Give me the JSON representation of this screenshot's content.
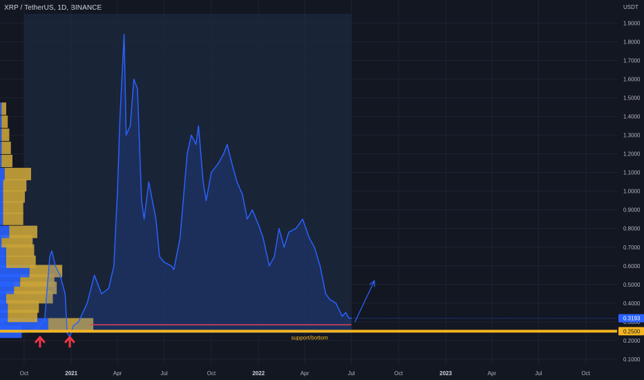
{
  "header": {
    "symbol_title": "XRP / TetherUS, 1D, BINANCE",
    "price_unit": "USDT"
  },
  "colors": {
    "background": "#131722",
    "line": "#2962ff",
    "support_line": "#f5b521",
    "red_line": "#e0435a",
    "arrow_red": "#f23645",
    "vp_up": "#2962ff",
    "vp_down": "#c9a33a",
    "grid": "#1f2331"
  },
  "chart_data": {
    "type": "line",
    "title": "XRP / TetherUS, 1D, BINANCE",
    "ylabel": "USDT",
    "ylim": [
      0.07,
      1.95
    ],
    "y_ticks": [
      "0.1000",
      "0.2000",
      "0.3000",
      "0.4000",
      "0.5000",
      "0.6000",
      "0.7000",
      "0.8000",
      "0.9000",
      "1.0000",
      "1.1000",
      "1.2000",
      "1.3000",
      "1.4000",
      "1.5000",
      "1.6000",
      "1.7000",
      "1.8000",
      "1.9000"
    ],
    "x_ticks": [
      {
        "label": "Oct",
        "bold": false
      },
      {
        "label": "2021",
        "bold": true
      },
      {
        "label": "Apr",
        "bold": false
      },
      {
        "label": "Jul",
        "bold": false
      },
      {
        "label": "Oct",
        "bold": false
      },
      {
        "label": "2022",
        "bold": true
      },
      {
        "label": "Apr",
        "bold": false
      },
      {
        "label": "Jul",
        "bold": false
      },
      {
        "label": "Oct",
        "bold": false
      },
      {
        "label": "2023",
        "bold": true
      },
      {
        "label": "Apr",
        "bold": false
      },
      {
        "label": "Jul",
        "bold": false
      },
      {
        "label": "Oct",
        "bold": false
      }
    ],
    "series": [
      {
        "x": [
          "2020-08-15",
          "2020-09-01",
          "2020-09-15",
          "2020-10-01",
          "2020-10-15",
          "2020-11-01",
          "2020-11-10",
          "2020-11-20",
          "2020-11-24",
          "2020-12-01",
          "2020-12-10",
          "2020-12-20",
          "2020-12-24",
          "2020-12-29",
          "2021-01-05",
          "2021-01-15",
          "2021-02-01",
          "2021-02-15",
          "2021-03-01",
          "2021-03-15",
          "2021-03-25",
          "2021-04-01",
          "2021-04-06",
          "2021-04-14",
          "2021-04-18",
          "2021-04-26",
          "2021-05-03",
          "2021-05-10",
          "2021-05-18",
          "2021-05-23",
          "2021-06-01",
          "2021-06-15",
          "2021-06-22",
          "2021-07-01",
          "2021-07-15",
          "2021-07-20",
          "2021-08-01",
          "2021-08-15",
          "2021-08-23",
          "2021-09-01",
          "2021-09-06",
          "2021-09-15",
          "2021-09-21",
          "2021-10-01",
          "2021-10-15",
          "2021-10-25",
          "2021-11-01",
          "2021-11-10",
          "2021-11-20",
          "2021-12-01",
          "2021-12-10",
          "2021-12-20",
          "2022-01-01",
          "2022-01-10",
          "2022-01-22",
          "2022-02-01",
          "2022-02-10",
          "2022-02-20",
          "2022-03-01",
          "2022-03-15",
          "2022-03-28",
          "2022-04-10",
          "2022-04-20",
          "2022-05-01",
          "2022-05-12",
          "2022-05-20",
          "2022-06-01",
          "2022-06-13",
          "2022-06-20",
          "2022-06-26",
          "2022-07-01"
        ],
        "values": [
          0.3,
          0.27,
          0.24,
          0.245,
          0.25,
          0.28,
          0.31,
          0.65,
          0.68,
          0.6,
          0.55,
          0.45,
          0.24,
          0.22,
          0.28,
          0.3,
          0.4,
          0.55,
          0.45,
          0.48,
          0.6,
          1.0,
          1.4,
          1.84,
          1.3,
          1.35,
          1.6,
          1.55,
          0.95,
          0.85,
          1.05,
          0.85,
          0.65,
          0.62,
          0.6,
          0.58,
          0.75,
          1.2,
          1.3,
          1.25,
          1.35,
          1.05,
          0.95,
          1.1,
          1.15,
          1.2,
          1.25,
          1.15,
          1.05,
          0.98,
          0.85,
          0.9,
          0.82,
          0.75,
          0.6,
          0.65,
          0.8,
          0.7,
          0.78,
          0.8,
          0.85,
          0.75,
          0.7,
          0.6,
          0.45,
          0.42,
          0.4,
          0.33,
          0.35,
          0.32,
          0.3193
        ]
      }
    ],
    "x_range": [
      "2020-08-15",
      "2023-12-01"
    ],
    "highlight_range": [
      "2020-10-01",
      "2022-07-01"
    ],
    "support_level": 0.25,
    "red_level": 0.2848,
    "current_price": 0.3193,
    "price_tags": [
      {
        "label": "0.3193",
        "value": 0.3193,
        "bg": "#2962ff",
        "fg": "#ffffff"
      },
      {
        "label": "0.2500",
        "value": 0.25,
        "bg": "#f5b521",
        "fg": "#131722"
      }
    ],
    "annotation_label": "support/bottom",
    "projection": {
      "from": [
        "2022-07-08",
        0.3
      ],
      "to": [
        "2022-08-15",
        0.52
      ]
    },
    "volume_profile": [
      {
        "price": 0.245,
        "up": 28,
        "down": 0
      },
      {
        "price": 0.285,
        "up": 62,
        "down": 58
      },
      {
        "price": 0.33,
        "up": 10,
        "down": 38
      },
      {
        "price": 0.38,
        "up": 10,
        "down": 40
      },
      {
        "price": 0.43,
        "up": 8,
        "down": 60
      },
      {
        "price": 0.48,
        "up": 18,
        "down": 55
      },
      {
        "price": 0.52,
        "up": 26,
        "down": 44
      },
      {
        "price": 0.57,
        "up": 38,
        "down": 42
      },
      {
        "price": 0.62,
        "up": 8,
        "down": 38
      },
      {
        "price": 0.68,
        "up": 8,
        "down": 36
      },
      {
        "price": 0.73,
        "up": 2,
        "down": 40
      },
      {
        "price": 0.78,
        "up": 12,
        "down": 36
      },
      {
        "price": 0.85,
        "up": 4,
        "down": 26
      },
      {
        "price": 0.91,
        "up": 4,
        "down": 26
      },
      {
        "price": 0.97,
        "up": 4,
        "down": 28
      },
      {
        "price": 1.03,
        "up": 4,
        "down": 30
      },
      {
        "price": 1.09,
        "up": 6,
        "down": 34
      },
      {
        "price": 1.16,
        "up": 2,
        "down": 14
      },
      {
        "price": 1.23,
        "up": 2,
        "down": 12
      },
      {
        "price": 1.3,
        "up": 2,
        "down": 10
      },
      {
        "price": 1.37,
        "up": 2,
        "down": 8
      },
      {
        "price": 1.44,
        "up": 2,
        "down": 6
      }
    ],
    "red_arrows": [
      "2020-11-01",
      "2020-12-29"
    ]
  }
}
